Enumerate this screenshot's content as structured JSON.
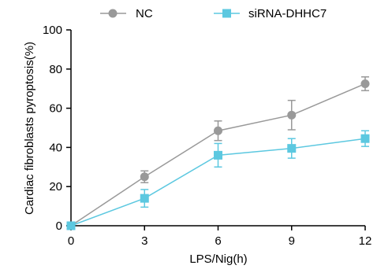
{
  "chart_data": {
    "type": "line",
    "xlabel": "LPS/Nig(h)",
    "ylabel": "Cardiac fibroblasts pyroptosis(%)",
    "x": [
      0,
      3,
      6,
      9,
      12
    ],
    "xticks": [
      "0",
      "3",
      "6",
      "9",
      "12"
    ],
    "yticks": [
      "0",
      "20",
      "40",
      "60",
      "80",
      "100"
    ],
    "xlim": [
      0,
      12
    ],
    "ylim": [
      0,
      100
    ],
    "grid": false,
    "legend_position": "top",
    "series": [
      {
        "name": "NC",
        "marker": "circle",
        "color": "#999999",
        "values": [
          0,
          25,
          48.5,
          56.5,
          72.5
        ],
        "errors": [
          0,
          3,
          5,
          7.5,
          3.5
        ]
      },
      {
        "name": "siRNA-DHHC7",
        "marker": "square",
        "color": "#5cc8e0",
        "values": [
          0,
          14,
          36,
          39.5,
          44.5
        ],
        "errors": [
          0,
          4.5,
          6,
          5,
          4
        ]
      }
    ]
  }
}
